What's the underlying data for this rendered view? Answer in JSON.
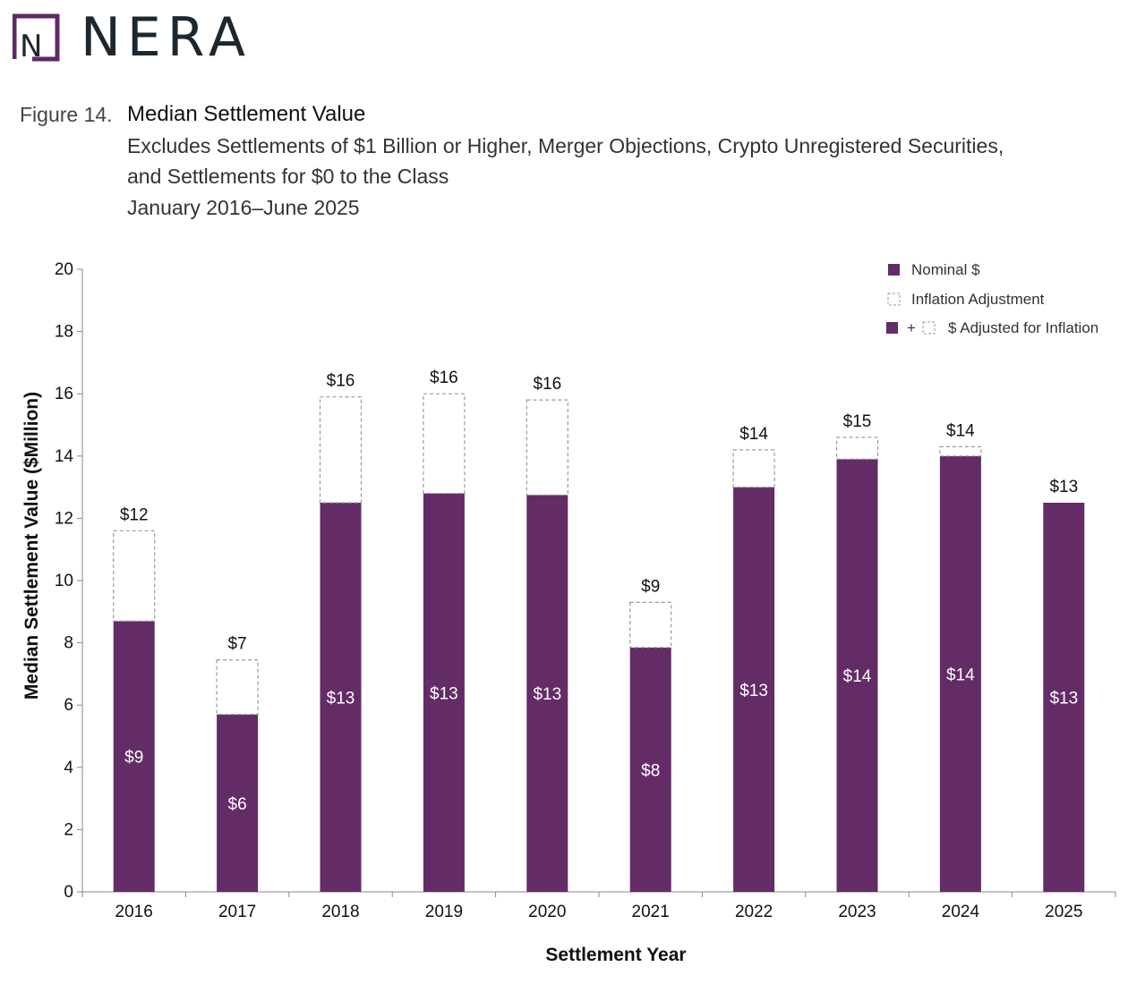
{
  "logo": {
    "text": "NERA",
    "mark_letter": "N",
    "color": "#5e2a66"
  },
  "header": {
    "figure_label": "Figure 14.",
    "title": "Median Settlement Value",
    "subtitle_lines": [
      "Excludes Settlements of $1 Billion or Higher, Merger Objections, Crypto Unregistered Securities,",
      "and Settlements for $0 to the Class",
      "January 2016–June 2025"
    ]
  },
  "chart_data": {
    "type": "bar",
    "stacked": true,
    "categories": [
      "2016",
      "2017",
      "2018",
      "2019",
      "2020",
      "2021",
      "2022",
      "2023",
      "2024",
      "2025"
    ],
    "series": [
      {
        "name": "Nominal $",
        "values": [
          8.7,
          5.7,
          12.5,
          12.8,
          12.75,
          7.85,
          13.0,
          13.9,
          14.0,
          12.5
        ],
        "color": "#632c66"
      },
      {
        "name": "Inflation Adjustment",
        "values": [
          2.9,
          1.75,
          3.4,
          3.2,
          3.05,
          1.45,
          1.2,
          0.7,
          0.3,
          0.0
        ],
        "color": "#ffffff",
        "border": "#999999"
      }
    ],
    "nominal_labels": [
      "$9",
      "$6",
      "$13",
      "$13",
      "$13",
      "$8",
      "$13",
      "$14",
      "$14",
      "$13"
    ],
    "total_labels": [
      "$12",
      "$7",
      "$16",
      "$16",
      "$16",
      "$9",
      "$14",
      "$15",
      "$14",
      "$13"
    ],
    "legend": [
      {
        "label": "Nominal $"
      },
      {
        "label": "Inflation Adjustment"
      },
      {
        "label": "$ Adjusted for Inflation",
        "prefix": "+"
      }
    ],
    "legend_position": "top-right",
    "title": "",
    "xlabel": "Settlement Year",
    "ylabel": "Median Settlement Value ($Million)",
    "yticks": [
      0,
      2,
      4,
      6,
      8,
      10,
      12,
      14,
      16,
      18,
      20
    ],
    "ylim": [
      0,
      20
    ],
    "grid": false
  }
}
